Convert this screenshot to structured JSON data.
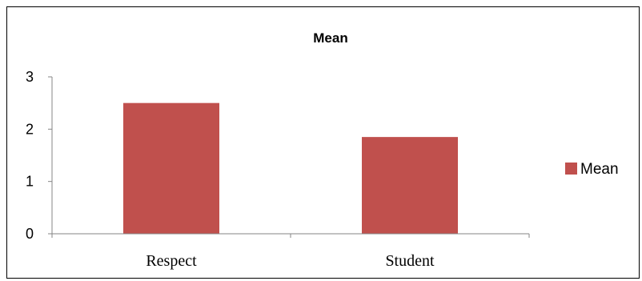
{
  "chart_data": {
    "type": "bar",
    "title": "Mean",
    "categories": [
      "Respect",
      "Student"
    ],
    "series": [
      {
        "name": "Mean",
        "values": [
          2.5,
          1.85
        ]
      }
    ],
    "ylim": [
      0,
      3
    ],
    "yticks": [
      "0",
      "1",
      "2",
      "3"
    ],
    "xlabel": "",
    "ylabel": "",
    "grid": false,
    "legend": "right",
    "colors": {
      "bar": "#c0504d",
      "axis": "#868686"
    }
  }
}
